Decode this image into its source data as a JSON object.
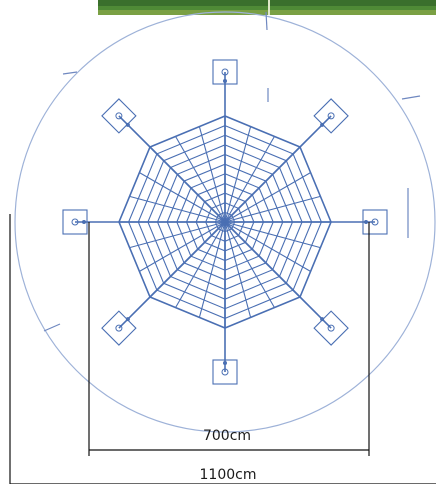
{
  "dimensions": {
    "inner_span": "700cm",
    "outer_span": "1100cm"
  },
  "web": {
    "anchor_count": 8,
    "ring_count": 11
  },
  "colors": {
    "web": "#4a6fb3",
    "outline": "#9eb2d8",
    "dimension_line": "#111111",
    "grass_top": "#3c7f34",
    "grass_bottom": "#6a9a3a"
  }
}
